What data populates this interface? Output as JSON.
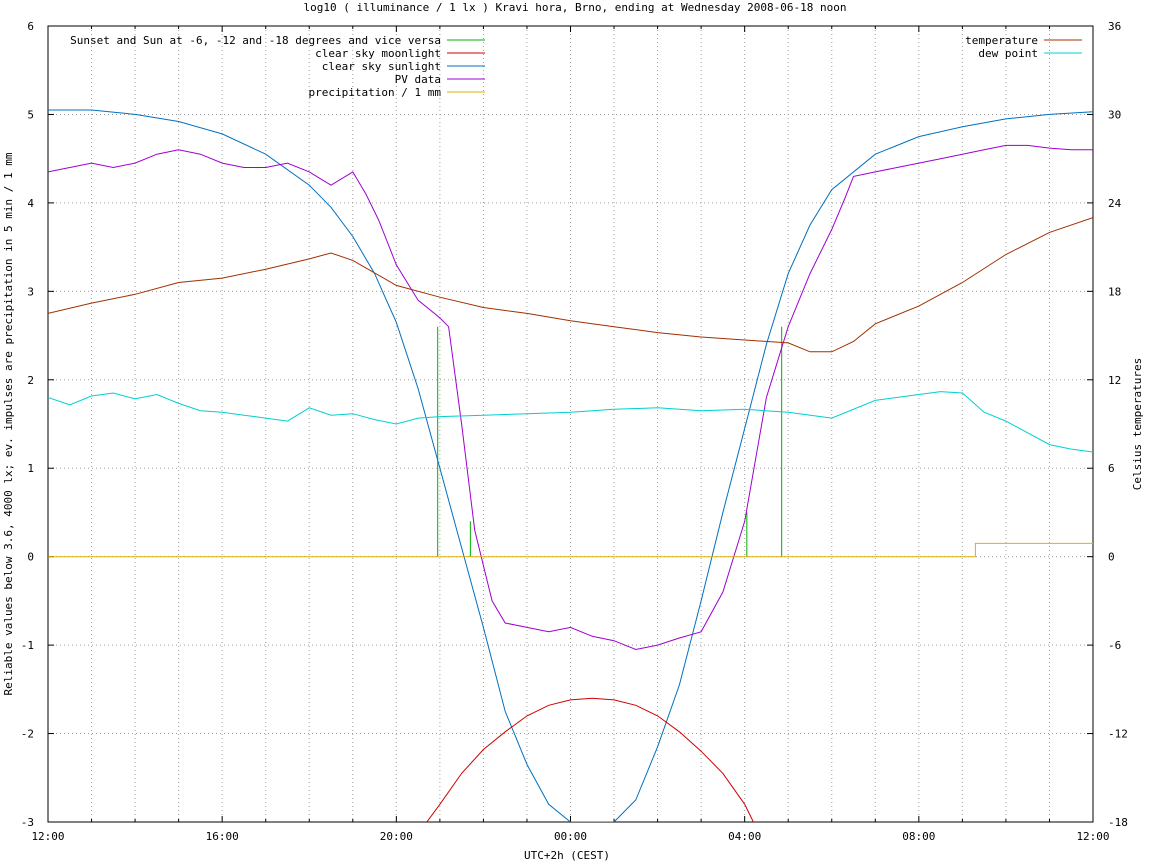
{
  "chart_data": {
    "type": "line",
    "title": "log10 ( illuminance / 1 lx ) Kravi hora, Brno, ending at Wednesday 2008-06-18 noon",
    "xlabel": "UTC+2h (CEST)",
    "ylabel": "Reliable values below 3.6, 4000 lx; ev. impulses are precipitation in 5 min / 1 mm",
    "y2label": "Celsius temperatures",
    "x_unit": "hours since 12:00",
    "xlim": [
      0,
      24
    ],
    "ylim": [
      -3,
      6
    ],
    "y2lim": [
      -18,
      36
    ],
    "grid": true,
    "x_ticks": [
      {
        "v": 0,
        "label": "12:00"
      },
      {
        "v": 4,
        "label": "16:00"
      },
      {
        "v": 8,
        "label": "20:00"
      },
      {
        "v": 12,
        "label": "00:00"
      },
      {
        "v": 16,
        "label": "04:00"
      },
      {
        "v": 20,
        "label": "08:00"
      },
      {
        "v": 24,
        "label": "12:00"
      }
    ],
    "y_ticks": [
      "-3",
      "-2",
      "-1",
      "0",
      "1",
      "2",
      "3",
      "4",
      "5",
      "6"
    ],
    "y2_ticks": [
      "-18",
      "-12",
      "-6",
      "0",
      "6",
      "12",
      "18",
      "24",
      "30",
      "36"
    ],
    "legend_left": [
      {
        "name": "Sunset and Sun at -6, -12 and -18 degrees and vice versa",
        "color": "#00b000"
      },
      {
        "name": "clear sky moonlight",
        "color": "#d00000"
      },
      {
        "name": "clear sky sunlight",
        "color": "#0070c0"
      },
      {
        "name": "PV data",
        "color": "#a000d0"
      },
      {
        "name": "precipitation / 1 mm",
        "color": "#e0b000"
      }
    ],
    "legend_right": [
      {
        "name": "temperature",
        "color": "#a03000"
      },
      {
        "name": "dew point",
        "color": "#00d0d0"
      }
    ],
    "series": [
      {
        "name": "clear sky sunlight",
        "color": "#0070c0",
        "axis": "left",
        "x": [
          0,
          1,
          2,
          3,
          4,
          5,
          6,
          6.5,
          7,
          7.5,
          8,
          8.5,
          9,
          9.5,
          10,
          10.5,
          11,
          11.5,
          12,
          12.5,
          13,
          13.5,
          14,
          14.5,
          15,
          15.5,
          16,
          16.5,
          17,
          17.5,
          18,
          19,
          20,
          21,
          22,
          23,
          24
        ],
        "y": [
          5.05,
          5.05,
          5.0,
          4.92,
          4.78,
          4.55,
          4.2,
          3.95,
          3.62,
          3.2,
          2.65,
          1.9,
          1.0,
          0.1,
          -0.8,
          -1.75,
          -2.35,
          -2.8,
          -3.0,
          -3.0,
          -3.0,
          -2.75,
          -2.15,
          -1.45,
          -0.5,
          0.5,
          1.45,
          2.4,
          3.2,
          3.75,
          4.15,
          4.55,
          4.75,
          4.86,
          4.95,
          5.0,
          5.03
        ]
      },
      {
        "name": "clear sky moonlight",
        "color": "#d00000",
        "axis": "left",
        "x": [
          8.7,
          9.0,
          9.5,
          10.0,
          10.5,
          11.0,
          11.5,
          12.0,
          12.5,
          13.0,
          13.5,
          14.0,
          14.5,
          15.0,
          15.5,
          16.0,
          16.2
        ],
        "y": [
          -3.0,
          -2.8,
          -2.45,
          -2.18,
          -1.98,
          -1.8,
          -1.68,
          -1.62,
          -1.6,
          -1.62,
          -1.68,
          -1.8,
          -1.98,
          -2.2,
          -2.45,
          -2.8,
          -3.0
        ]
      },
      {
        "name": "PV data",
        "color": "#a000d0",
        "axis": "left",
        "x": [
          0,
          0.5,
          1,
          1.5,
          2,
          2.5,
          3,
          3.5,
          4,
          4.5,
          5,
          5.5,
          6,
          6.5,
          7,
          7.3,
          7.6,
          8.0,
          8.5,
          9.0,
          9.2,
          9.5,
          9.8,
          10.2,
          10.5,
          11,
          11.5,
          12,
          12.5,
          13,
          13.5,
          14,
          14.5,
          15,
          15.5,
          16,
          16.5,
          17,
          17.5,
          18,
          18.3,
          18.5,
          19,
          19.5,
          20,
          20.5,
          21,
          21.5,
          22,
          22.5,
          23,
          23.5,
          24
        ],
        "y": [
          4.35,
          4.4,
          4.45,
          4.4,
          4.45,
          4.55,
          4.6,
          4.55,
          4.45,
          4.4,
          4.4,
          4.45,
          4.35,
          4.2,
          4.35,
          4.1,
          3.8,
          3.3,
          2.9,
          2.7,
          2.6,
          1.5,
          0.3,
          -0.5,
          -0.75,
          -0.8,
          -0.85,
          -0.8,
          -0.9,
          -0.95,
          -1.05,
          -1.0,
          -0.92,
          -0.85,
          -0.4,
          0.4,
          1.8,
          2.6,
          3.2,
          3.7,
          4.05,
          4.3,
          4.35,
          4.4,
          4.45,
          4.5,
          4.55,
          4.6,
          4.65,
          4.65,
          4.62,
          4.6,
          4.6
        ]
      },
      {
        "name": "temperature",
        "color": "#a03000",
        "axis": "right",
        "x": [
          0,
          1,
          2,
          3,
          4,
          5,
          6,
          6.5,
          7,
          8,
          9,
          10,
          11,
          12,
          13,
          14,
          15,
          16,
          17,
          17.5,
          18,
          18.5,
          19,
          20,
          21,
          22,
          23,
          24
        ],
        "y": [
          16.5,
          17.2,
          17.8,
          18.6,
          18.9,
          19.5,
          20.2,
          20.6,
          20.1,
          18.4,
          17.6,
          16.9,
          16.5,
          16.0,
          15.6,
          15.2,
          14.9,
          14.7,
          14.5,
          13.9,
          13.9,
          14.6,
          15.8,
          17.0,
          18.6,
          20.5,
          22.0,
          23.0
        ]
      },
      {
        "name": "dew point",
        "color": "#00d0d0",
        "axis": "right",
        "x": [
          0,
          0.5,
          1,
          1.5,
          2,
          2.5,
          3,
          3.5,
          4,
          4.5,
          5,
          5.5,
          6,
          6.5,
          7,
          7.5,
          8,
          8.5,
          9,
          10,
          11,
          12,
          13,
          14,
          15,
          16,
          17,
          18,
          19,
          20,
          20.5,
          21,
          21.5,
          22,
          22.5,
          23,
          23.5,
          24
        ],
        "y": [
          10.8,
          10.3,
          10.9,
          11.1,
          10.7,
          11.0,
          10.4,
          9.9,
          9.8,
          9.6,
          9.4,
          9.2,
          10.1,
          9.6,
          9.7,
          9.3,
          9.0,
          9.4,
          9.5,
          9.6,
          9.7,
          9.8,
          10.0,
          10.1,
          9.9,
          10.0,
          9.8,
          9.4,
          10.6,
          11.0,
          11.2,
          11.1,
          9.8,
          9.2,
          8.4,
          7.6,
          7.3,
          7.1
        ]
      },
      {
        "name": "precipitation / 1 mm",
        "color": "#e0b000",
        "axis": "left",
        "x": [
          0,
          21.3,
          21.3,
          24
        ],
        "y": [
          0,
          0,
          0.15,
          0.15
        ]
      }
    ],
    "sun_markers": {
      "color": "#00b000",
      "x": [
        8.95,
        9.7,
        10.75,
        15.0,
        16.05,
        16.85
      ],
      "y_top": [
        2.6,
        0.4,
        0.0,
        0.0,
        0.5,
        2.6
      ]
    }
  }
}
